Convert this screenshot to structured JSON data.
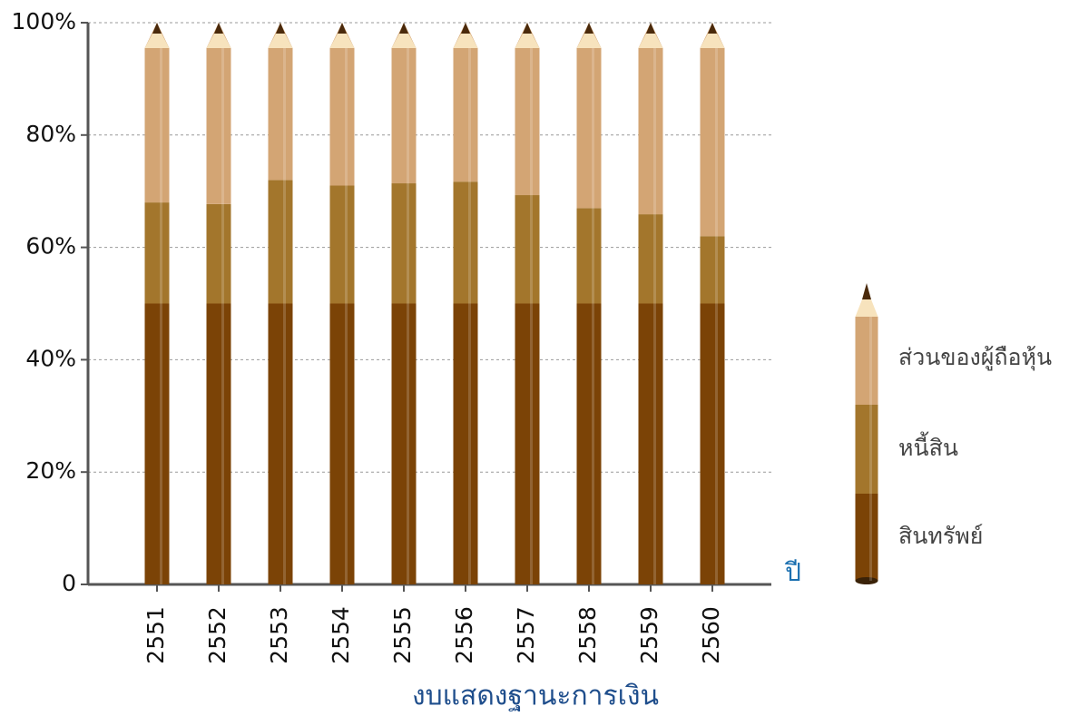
{
  "chart_data": {
    "type": "stacked_bar",
    "x_label": "งบแสดงฐานะการเงิน",
    "x_unit": "ปี",
    "categories": [
      "2551",
      "2552",
      "2553",
      "2554",
      "2555",
      "2556",
      "2557",
      "2558",
      "2559",
      "2560"
    ],
    "series": [
      {
        "name": "สินทรัพย์",
        "color": "#7b4306",
        "values": [
          50,
          50,
          50,
          50,
          50,
          50,
          50,
          50,
          50,
          50
        ]
      },
      {
        "name": "หนี้สิน",
        "color": "#a3762c",
        "values": [
          18,
          17.7,
          22,
          21,
          21.4,
          21.7,
          19.3,
          17,
          15.9,
          12
        ]
      },
      {
        "name": "ส่วนของผู้ถือหุ้น",
        "color": "#d3a574",
        "values": [
          32,
          32.3,
          28,
          29,
          28.6,
          28.3,
          30.7,
          33,
          34.1,
          38
        ]
      }
    ],
    "ylim": [
      0,
      100
    ],
    "yticks": [
      0,
      {
        "value": 20,
        "label": "20%"
      },
      {
        "value": 40,
        "label": "40%"
      },
      {
        "value": 60,
        "label": "60%"
      },
      {
        "value": 80,
        "label": "80%"
      },
      {
        "value": 100,
        "label": "100%"
      }
    ],
    "grid": true
  }
}
